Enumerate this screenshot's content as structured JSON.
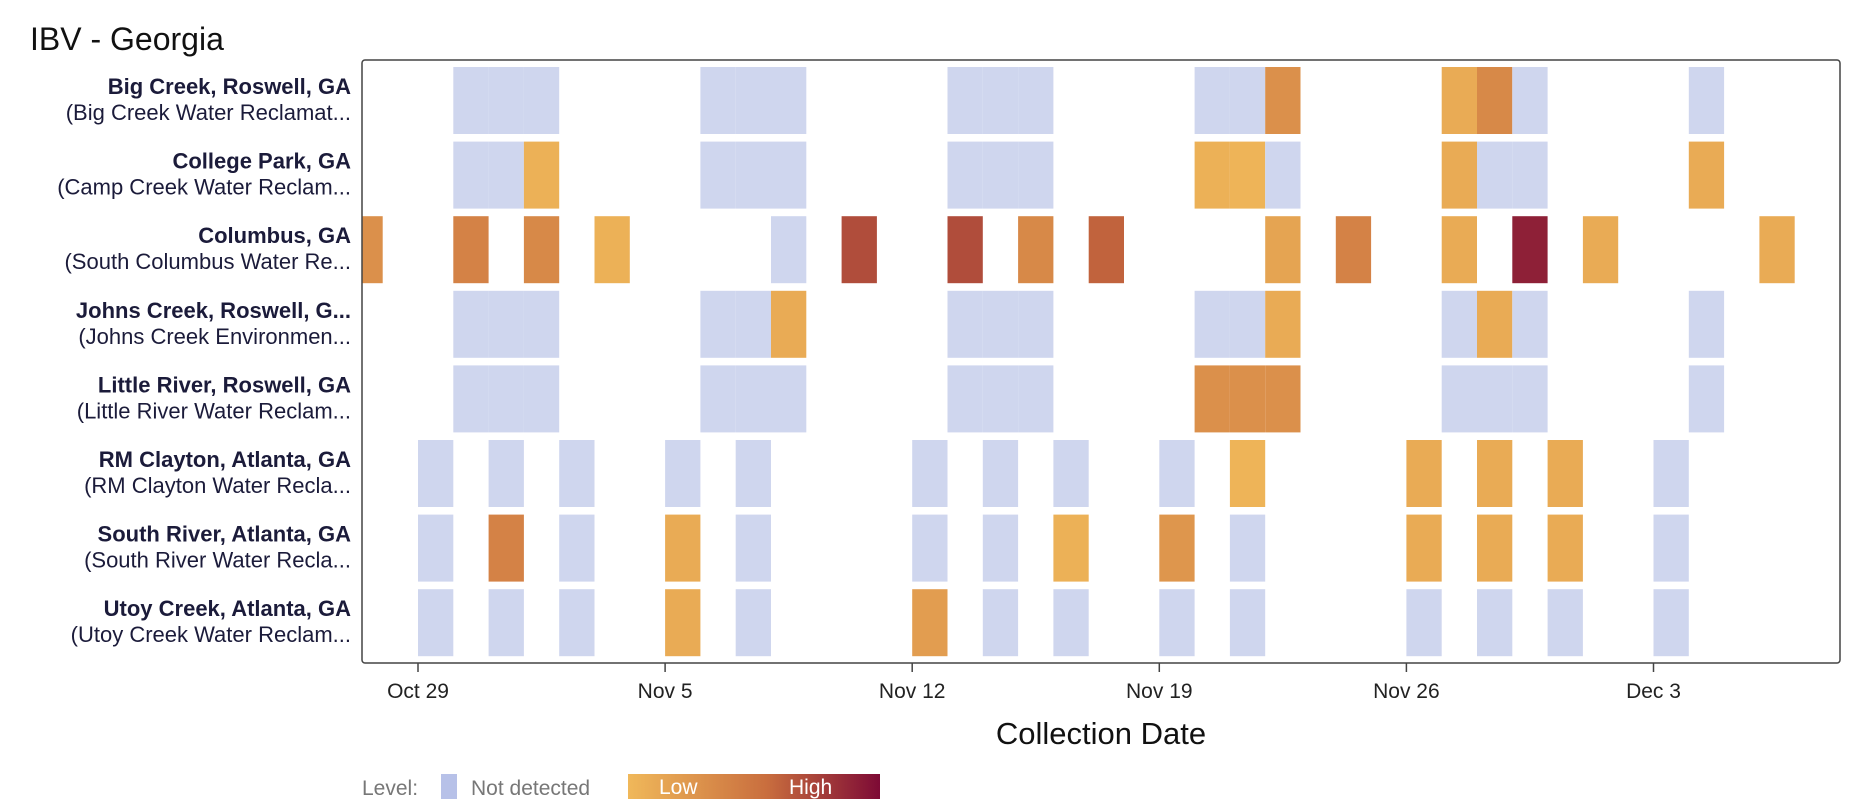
{
  "chart_data": {
    "type": "heatmap",
    "title": "IBV - Georgia",
    "xlabel": "Collection Date",
    "x_axis": {
      "type": "date",
      "range": [
        "2024-10-27",
        "2024-12-09"
      ],
      "ticks": [
        {
          "date": "2024-10-29",
          "label": "Oct 29"
        },
        {
          "date": "2024-11-05",
          "label": "Nov 5"
        },
        {
          "date": "2024-11-12",
          "label": "Nov 12"
        },
        {
          "date": "2024-11-19",
          "label": "Nov 19"
        },
        {
          "date": "2024-11-26",
          "label": "Nov 26"
        },
        {
          "date": "2024-12-03",
          "label": "Dec 3"
        }
      ]
    },
    "rows": [
      {
        "name": "Big Creek, Roswell, GA",
        "facility": "(Big Creek Water Reclamat...",
        "samples": [
          {
            "date": "2024-10-30",
            "level": "nd"
          },
          {
            "date": "2024-10-31",
            "level": "nd"
          },
          {
            "date": "2024-11-01",
            "level": "nd"
          },
          {
            "date": "2024-11-06",
            "level": "nd"
          },
          {
            "date": "2024-11-07",
            "level": "nd"
          },
          {
            "date": "2024-11-08",
            "level": "nd"
          },
          {
            "date": "2024-11-13",
            "level": "nd"
          },
          {
            "date": "2024-11-14",
            "level": "nd"
          },
          {
            "date": "2024-11-15",
            "level": "nd"
          },
          {
            "date": "2024-11-20",
            "level": "nd"
          },
          {
            "date": "2024-11-21",
            "level": "nd"
          },
          {
            "date": "2024-11-22",
            "level": 0.3
          },
          {
            "date": "2024-11-27",
            "level": 0.1
          },
          {
            "date": "2024-11-28",
            "level": 0.35
          },
          {
            "date": "2024-11-29",
            "level": "nd"
          },
          {
            "date": "2024-12-04",
            "level": "nd"
          }
        ]
      },
      {
        "name": "College Park, GA",
        "facility": "(Camp Creek Water Reclam...",
        "samples": [
          {
            "date": "2024-10-30",
            "level": "nd"
          },
          {
            "date": "2024-10-31",
            "level": "nd"
          },
          {
            "date": "2024-11-01",
            "level": 0.05
          },
          {
            "date": "2024-11-06",
            "level": "nd"
          },
          {
            "date": "2024-11-07",
            "level": "nd"
          },
          {
            "date": "2024-11-08",
            "level": "nd"
          },
          {
            "date": "2024-11-13",
            "level": "nd"
          },
          {
            "date": "2024-11-14",
            "level": "nd"
          },
          {
            "date": "2024-11-15",
            "level": "nd"
          },
          {
            "date": "2024-11-20",
            "level": 0.05
          },
          {
            "date": "2024-11-21",
            "level": 0.03
          },
          {
            "date": "2024-11-22",
            "level": "nd"
          },
          {
            "date": "2024-11-27",
            "level": 0.1
          },
          {
            "date": "2024-11-28",
            "level": "nd"
          },
          {
            "date": "2024-11-29",
            "level": "nd"
          },
          {
            "date": "2024-12-04",
            "level": 0.1
          }
        ]
      },
      {
        "name": "Columbus, GA",
        "facility": "(South Columbus Water Re...",
        "samples": [
          {
            "date": "2024-10-27",
            "level": 0.3
          },
          {
            "date": "2024-10-30",
            "level": 0.4
          },
          {
            "date": "2024-11-01",
            "level": 0.35
          },
          {
            "date": "2024-11-03",
            "level": 0.05
          },
          {
            "date": "2024-11-08",
            "level": "nd"
          },
          {
            "date": "2024-11-10",
            "level": 0.7
          },
          {
            "date": "2024-11-13",
            "level": 0.7
          },
          {
            "date": "2024-11-15",
            "level": 0.35
          },
          {
            "date": "2024-11-17",
            "level": 0.6
          },
          {
            "date": "2024-11-22",
            "level": 0.15
          },
          {
            "date": "2024-11-24",
            "level": 0.4
          },
          {
            "date": "2024-11-27",
            "level": 0.1
          },
          {
            "date": "2024-11-29",
            "level": 0.9
          },
          {
            "date": "2024-12-01",
            "level": 0.1
          },
          {
            "date": "2024-12-06",
            "level": 0.1
          }
        ]
      },
      {
        "name": "Johns Creek, Roswell, G...",
        "facility": "(Johns Creek Environmen...",
        "samples": [
          {
            "date": "2024-10-30",
            "level": "nd"
          },
          {
            "date": "2024-10-31",
            "level": "nd"
          },
          {
            "date": "2024-11-01",
            "level": "nd"
          },
          {
            "date": "2024-11-06",
            "level": "nd"
          },
          {
            "date": "2024-11-07",
            "level": "nd"
          },
          {
            "date": "2024-11-08",
            "level": 0.1
          },
          {
            "date": "2024-11-13",
            "level": "nd"
          },
          {
            "date": "2024-11-14",
            "level": "nd"
          },
          {
            "date": "2024-11-15",
            "level": "nd"
          },
          {
            "date": "2024-11-20",
            "level": "nd"
          },
          {
            "date": "2024-11-21",
            "level": "nd"
          },
          {
            "date": "2024-11-22",
            "level": 0.1
          },
          {
            "date": "2024-11-27",
            "level": "nd"
          },
          {
            "date": "2024-11-28",
            "level": 0.1
          },
          {
            "date": "2024-11-29",
            "level": "nd"
          },
          {
            "date": "2024-12-04",
            "level": "nd"
          }
        ]
      },
      {
        "name": "Little River, Roswell, GA",
        "facility": "(Little River Water Reclam...",
        "samples": [
          {
            "date": "2024-10-30",
            "level": "nd"
          },
          {
            "date": "2024-10-31",
            "level": "nd"
          },
          {
            "date": "2024-11-01",
            "level": "nd"
          },
          {
            "date": "2024-11-06",
            "level": "nd"
          },
          {
            "date": "2024-11-07",
            "level": "nd"
          },
          {
            "date": "2024-11-08",
            "level": "nd"
          },
          {
            "date": "2024-11-13",
            "level": "nd"
          },
          {
            "date": "2024-11-14",
            "level": "nd"
          },
          {
            "date": "2024-11-15",
            "level": "nd"
          },
          {
            "date": "2024-11-20",
            "level": 0.3
          },
          {
            "date": "2024-11-21",
            "level": 0.3
          },
          {
            "date": "2024-11-22",
            "level": 0.3
          },
          {
            "date": "2024-11-27",
            "level": "nd"
          },
          {
            "date": "2024-11-28",
            "level": "nd"
          },
          {
            "date": "2024-11-29",
            "level": "nd"
          },
          {
            "date": "2024-12-04",
            "level": "nd"
          }
        ]
      },
      {
        "name": "RM Clayton, Atlanta, GA",
        "facility": "(RM Clayton Water Recla...",
        "samples": [
          {
            "date": "2024-10-29",
            "level": "nd"
          },
          {
            "date": "2024-10-31",
            "level": "nd"
          },
          {
            "date": "2024-11-02",
            "level": "nd"
          },
          {
            "date": "2024-11-05",
            "level": "nd"
          },
          {
            "date": "2024-11-07",
            "level": "nd"
          },
          {
            "date": "2024-11-12",
            "level": "nd"
          },
          {
            "date": "2024-11-14",
            "level": "nd"
          },
          {
            "date": "2024-11-16",
            "level": "nd"
          },
          {
            "date": "2024-11-19",
            "level": "nd"
          },
          {
            "date": "2024-11-21",
            "level": 0.03
          },
          {
            "date": "2024-11-26",
            "level": 0.1
          },
          {
            "date": "2024-11-28",
            "level": 0.1
          },
          {
            "date": "2024-11-30",
            "level": 0.1
          },
          {
            "date": "2024-12-03",
            "level": "nd"
          }
        ]
      },
      {
        "name": "South River, Atlanta, GA",
        "facility": "(South River Water Recla...",
        "samples": [
          {
            "date": "2024-10-29",
            "level": "nd"
          },
          {
            "date": "2024-10-31",
            "level": 0.4
          },
          {
            "date": "2024-11-02",
            "level": "nd"
          },
          {
            "date": "2024-11-05",
            "level": 0.1
          },
          {
            "date": "2024-11-07",
            "level": "nd"
          },
          {
            "date": "2024-11-12",
            "level": "nd"
          },
          {
            "date": "2024-11-14",
            "level": "nd"
          },
          {
            "date": "2024-11-16",
            "level": 0.05
          },
          {
            "date": "2024-11-19",
            "level": 0.25
          },
          {
            "date": "2024-11-21",
            "level": "nd"
          },
          {
            "date": "2024-11-26",
            "level": 0.1
          },
          {
            "date": "2024-11-28",
            "level": 0.1
          },
          {
            "date": "2024-11-30",
            "level": 0.1
          },
          {
            "date": "2024-12-03",
            "level": "nd"
          }
        ]
      },
      {
        "name": "Utoy Creek, Atlanta, GA",
        "facility": "(Utoy Creek Water Reclam...",
        "samples": [
          {
            "date": "2024-10-29",
            "level": "nd"
          },
          {
            "date": "2024-10-31",
            "level": "nd"
          },
          {
            "date": "2024-11-02",
            "level": "nd"
          },
          {
            "date": "2024-11-05",
            "level": 0.1
          },
          {
            "date": "2024-11-07",
            "level": "nd"
          },
          {
            "date": "2024-11-12",
            "level": 0.2
          },
          {
            "date": "2024-11-14",
            "level": "nd"
          },
          {
            "date": "2024-11-16",
            "level": "nd"
          },
          {
            "date": "2024-11-19",
            "level": "nd"
          },
          {
            "date": "2024-11-21",
            "level": "nd"
          },
          {
            "date": "2024-11-26",
            "level": "nd"
          },
          {
            "date": "2024-11-28",
            "level": "nd"
          },
          {
            "date": "2024-11-30",
            "level": "nd"
          },
          {
            "date": "2024-12-03",
            "level": "nd"
          }
        ]
      }
    ],
    "legend": {
      "placement": "bottom-left",
      "label": "Level:",
      "not_detected": "Not detected",
      "low": "Low",
      "high": "High"
    },
    "colors": {
      "not_detected": "#cfd6ee",
      "low": "#f0b85a",
      "high": "#7d0a35",
      "legend_nd": "#b7c1e8",
      "frame": "#444444"
    },
    "grid": false
  }
}
